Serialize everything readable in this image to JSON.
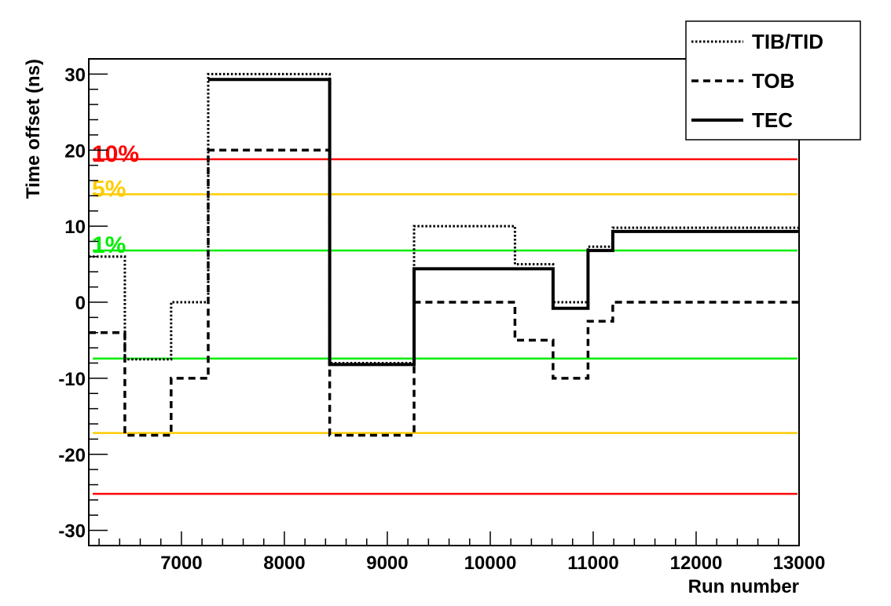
{
  "chart_data": {
    "type": "line",
    "xlabel": "Run number",
    "ylabel": "Time offset (ns)",
    "xlim": [
      6100,
      13000
    ],
    "ylim": [
      -32,
      32
    ],
    "x_ticks": [
      7000,
      8000,
      9000,
      10000,
      11000,
      12000,
      13000
    ],
    "x_tick_labels": [
      "7000",
      "8000",
      "9000",
      "10000",
      "11000",
      "12000",
      "13000"
    ],
    "y_ticks": [
      -30,
      -20,
      -10,
      0,
      10,
      20,
      30
    ],
    "y_tick_labels": [
      "-30",
      "-20",
      "-10",
      "0",
      "10",
      "20",
      "30"
    ],
    "grid": false,
    "legend_position": "top-right",
    "series": [
      {
        "name": "TIB/TID",
        "style": "dotted",
        "color": "#000000",
        "x": [
          6100,
          6450,
          6450,
          6900,
          6900,
          7260,
          7260,
          8440,
          8440,
          9260,
          9260,
          10240,
          10240,
          10610,
          10610,
          10950,
          10950,
          11190,
          11190,
          13000
        ],
        "y": [
          6,
          6,
          -7.5,
          -7.5,
          0,
          0,
          30,
          30,
          -8,
          -8,
          10,
          10,
          5,
          5,
          0,
          0,
          7.3,
          7.3,
          9.8,
          9.8
        ]
      },
      {
        "name": "TOB",
        "style": "dashed",
        "color": "#000000",
        "x": [
          6100,
          6450,
          6450,
          6900,
          6900,
          7260,
          7260,
          8440,
          8440,
          9260,
          9260,
          10240,
          10240,
          10610,
          10610,
          10950,
          10950,
          11190,
          11190,
          13000
        ],
        "y": [
          -4,
          -4,
          -17.5,
          -17.5,
          -10,
          -10,
          20,
          20,
          -17.5,
          -17.5,
          0,
          0,
          -5,
          -5,
          -10,
          -10,
          -2.5,
          -2.5,
          0,
          0
        ]
      },
      {
        "name": "TEC",
        "style": "solid",
        "color": "#000000",
        "x": [
          7260,
          8440,
          8440,
          9260,
          9260,
          10610,
          10610,
          10950,
          10950,
          11190,
          11190,
          13000
        ],
        "y": [
          29.3,
          29.3,
          -8.2,
          -8.2,
          4.4,
          4.4,
          -0.8,
          -0.8,
          6.8,
          6.8,
          9.3,
          9.3
        ]
      }
    ],
    "reference_lines": [
      {
        "label": "10%",
        "color": "#ff0000",
        "y_upper": 18.8,
        "y_lower": -25.2
      },
      {
        "label": "5%",
        "color": "#ffcc00",
        "y_upper": 14.2,
        "y_lower": -17.2
      },
      {
        "label": "1%",
        "color": "#00ee00",
        "y_upper": 6.8,
        "y_lower": -7.4
      }
    ]
  }
}
